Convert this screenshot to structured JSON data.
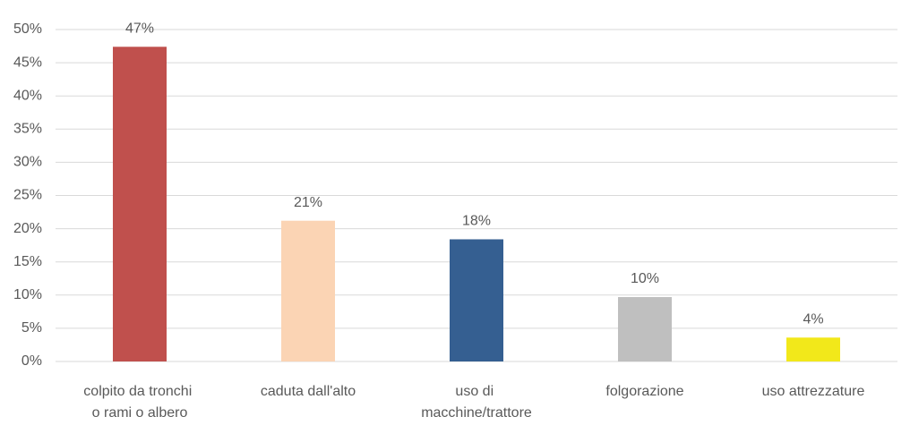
{
  "chart_data": {
    "type": "bar",
    "categories": [
      "colpito da tronchi o rami o albero",
      "caduta dall'alto",
      "uso di macchine/trattore",
      "folgorazione",
      "uso attrezzature"
    ],
    "values": [
      47.4,
      21.2,
      18.4,
      9.7,
      3.6
    ],
    "value_labels": [
      "47%",
      "21%",
      "18%",
      "10%",
      "4%"
    ],
    "colors": [
      "#c0504d",
      "#fbd4b4",
      "#355f91",
      "#bfbfbf",
      "#f2e81a"
    ],
    "ylim": [
      0,
      50
    ],
    "yticks": [
      {
        "value": 0,
        "label": "0%"
      },
      {
        "value": 5,
        "label": "5%"
      },
      {
        "value": 10,
        "label": "10%"
      },
      {
        "value": 15,
        "label": "15%"
      },
      {
        "value": 20,
        "label": "20%"
      },
      {
        "value": 25,
        "label": "25%"
      },
      {
        "value": 30,
        "label": "30%"
      },
      {
        "value": 35,
        "label": "35%"
      },
      {
        "value": 40,
        "label": "40%"
      },
      {
        "value": 45,
        "label": "45%"
      },
      {
        "value": 50,
        "label": "50%"
      }
    ],
    "grid": true
  }
}
